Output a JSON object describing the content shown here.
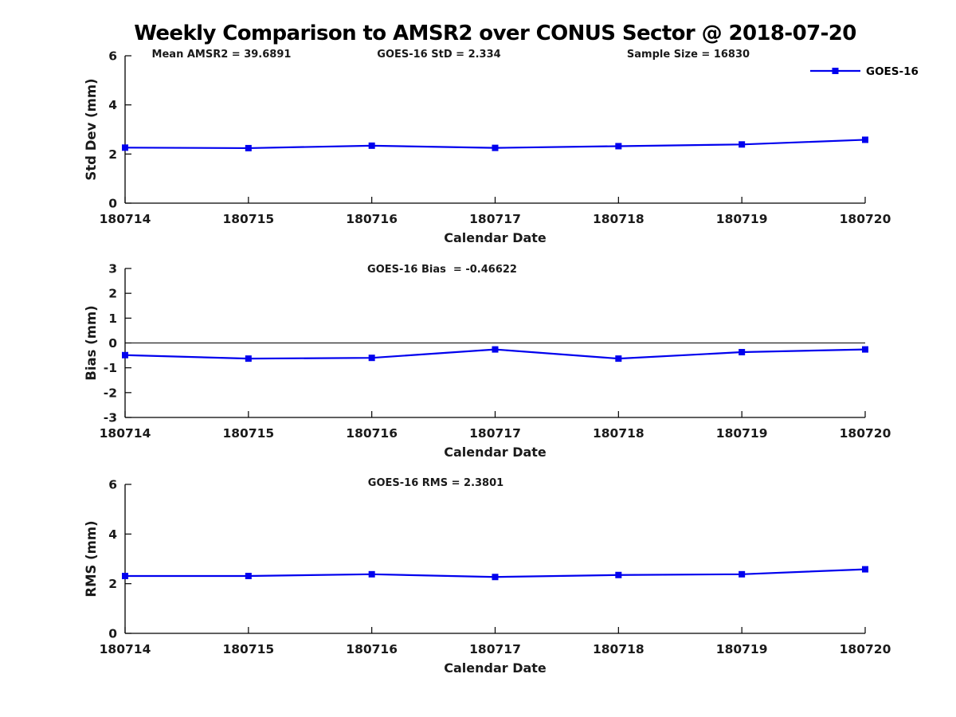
{
  "title": "Weekly Comparison to AMSR2 over CONUS Sector @ 2018-07-20",
  "legend": {
    "label": "GOES-16",
    "position": "top-right",
    "box": false
  },
  "colors": {
    "line": "#0000EE",
    "text": "#1a1a1a",
    "axis": "#000000",
    "zero_line": "#000000",
    "background": "#ffffff"
  },
  "chart_data": [
    {
      "type": "line",
      "name": "std-dev-panel",
      "annotations": [
        "Mean AMSR2 = 39.6891",
        "GOES-16 StD = 2.334",
        "Sample Size = 16830"
      ],
      "stats": {
        "mean_amsr2": 39.6891,
        "goes16_std": 2.334,
        "sample_size": 16830
      },
      "categories": [
        "180714",
        "180715",
        "180716",
        "180717",
        "180718",
        "180719",
        "180720"
      ],
      "series": [
        {
          "name": "GOES-16",
          "values": [
            2.26,
            2.24,
            2.34,
            2.25,
            2.32,
            2.39,
            2.58
          ]
        }
      ],
      "xlabel": "Calendar Date",
      "ylabel": "Std Dev (mm)",
      "ylim": [
        0,
        6
      ],
      "yticks": [
        0,
        2,
        4,
        6
      ],
      "zero_line": false,
      "grid": false,
      "show_legend": true
    },
    {
      "type": "line",
      "name": "bias-panel",
      "annotations": [
        "GOES-16 Bias  = -0.46622"
      ],
      "stats": {
        "goes16_bias": -0.46622
      },
      "categories": [
        "180714",
        "180715",
        "180716",
        "180717",
        "180718",
        "180719",
        "180720"
      ],
      "series": [
        {
          "name": "GOES-16",
          "values": [
            -0.49,
            -0.63,
            -0.6,
            -0.26,
            -0.63,
            -0.37,
            -0.26
          ]
        }
      ],
      "xlabel": "Calendar Date",
      "ylabel": "Bias (mm)",
      "ylim": [
        -3,
        3
      ],
      "yticks": [
        -3,
        -2,
        -1,
        0,
        1,
        2,
        3
      ],
      "zero_line": true,
      "grid": false,
      "show_legend": false
    },
    {
      "type": "line",
      "name": "rms-panel",
      "annotations": [
        "GOES-16 RMS = 2.3801"
      ],
      "stats": {
        "goes16_rms": 2.3801
      },
      "categories": [
        "180714",
        "180715",
        "180716",
        "180717",
        "180718",
        "180719",
        "180720"
      ],
      "series": [
        {
          "name": "GOES-16",
          "values": [
            2.31,
            2.31,
            2.38,
            2.27,
            2.35,
            2.38,
            2.58
          ]
        }
      ],
      "xlabel": "Calendar Date",
      "ylabel": "RMS (mm)",
      "ylim": [
        0,
        6
      ],
      "yticks": [
        0,
        2,
        4,
        6
      ],
      "zero_line": false,
      "grid": false,
      "show_legend": false
    }
  ]
}
